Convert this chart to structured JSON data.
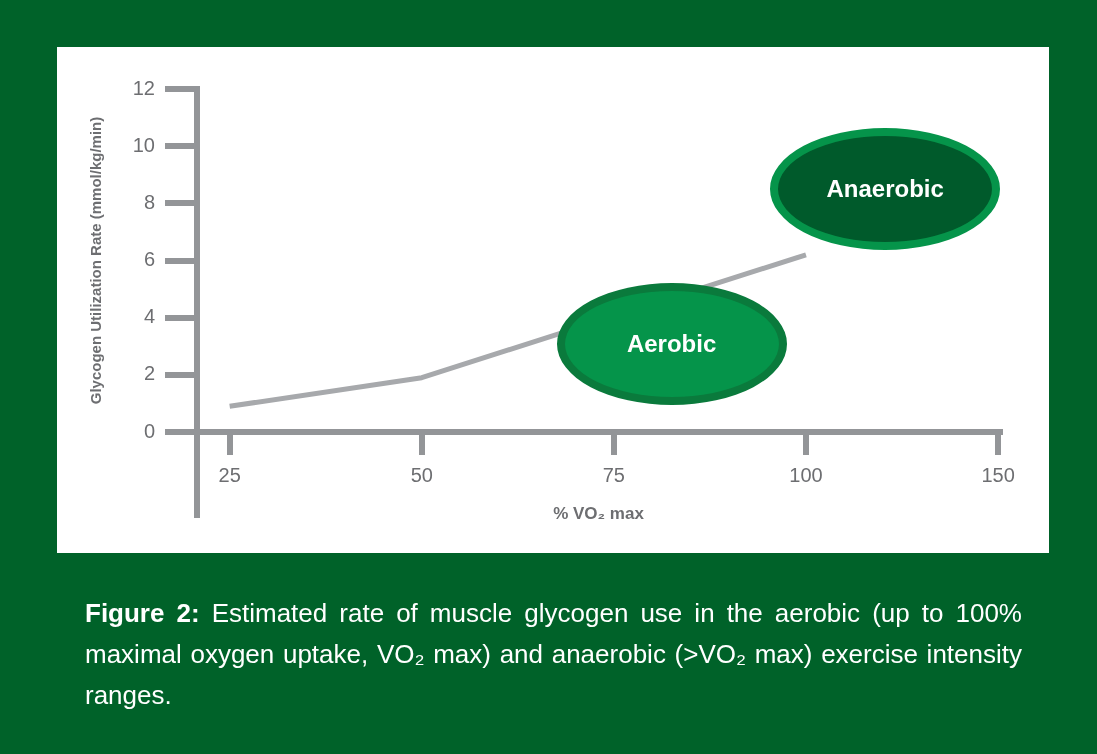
{
  "chart_data": {
    "type": "line",
    "xlabel": "% VO₂ max",
    "ylabel": "Glycogen Utilization Rate (mmol/kg/min)",
    "categories": [
      "25",
      "50",
      "75",
      "100",
      "150"
    ],
    "values": [
      0.9,
      1.9,
      null,
      6.2,
      null
    ],
    "color": "#a7a9ac",
    "ylim": [
      0,
      12
    ],
    "yticks": [
      0,
      2,
      4,
      6,
      8,
      10,
      12
    ],
    "annotations": [
      "Aerobic",
      "Anaerobic",
      "Figure 2: Estimated rate of muscle glycogen use in the aerobic (up to 100% maximal oxygen uptake, VO₂ max) and anaerobic (>VO₂ max) exercise intensity ranges."
    ]
  }
}
